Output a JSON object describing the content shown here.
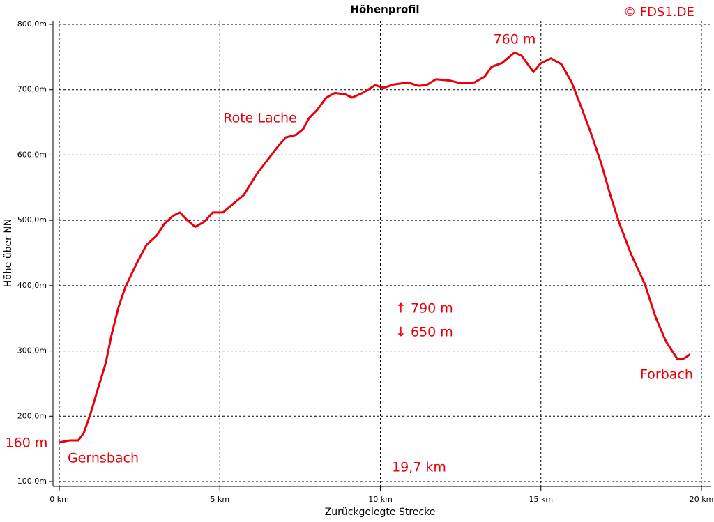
{
  "chart_data": {
    "type": "line",
    "title": "Höhenprofil",
    "x_label": "Zurückgelegte Strecke",
    "y_label": "Höhe über NN",
    "credit": "© FDS1.DE",
    "annotations": [
      "760 m",
      "Rote Lache",
      "160 m",
      "Gernsbach",
      "↑ 790 m",
      "↓ 650 m",
      "19,7 km",
      "Forbach"
    ],
    "xlim": [
      0,
      20
    ],
    "ylim": [
      100,
      800
    ],
    "xticks": [
      {
        "value": 0,
        "label": "0 km"
      },
      {
        "value": 5,
        "label": "5 km"
      },
      {
        "value": 10,
        "label": "10 km"
      },
      {
        "value": 15,
        "label": "15 km"
      },
      {
        "value": 20,
        "label": "20 km"
      }
    ],
    "yticks": [
      {
        "value": 100,
        "label": "100,0m"
      },
      {
        "value": 200,
        "label": "200,0m"
      },
      {
        "value": 300,
        "label": "300,0m"
      },
      {
        "value": 400,
        "label": "400,0m"
      },
      {
        "value": 500,
        "label": "500,0m"
      },
      {
        "value": 600,
        "label": "600,0m"
      },
      {
        "value": 700,
        "label": "700,0m"
      },
      {
        "value": 800,
        "label": "800,0m"
      }
    ],
    "grid": true,
    "series": [
      {
        "color": "#e8000b",
        "x": [
          0,
          0.33,
          0.59,
          0.76,
          0.98,
          1.19,
          1.45,
          1.63,
          1.85,
          2.06,
          2.39,
          2.71,
          3.04,
          3.26,
          3.54,
          3.76,
          3.97,
          4.23,
          4.52,
          4.78,
          5.1,
          5.43,
          5.75,
          6.15,
          6.51,
          6.84,
          7.06,
          7.38,
          7.6,
          7.77,
          8.03,
          8.32,
          8.58,
          8.9,
          9.12,
          9.45,
          9.84,
          10.1,
          10.42,
          10.86,
          11.18,
          11.44,
          11.73,
          12.16,
          12.49,
          12.92,
          13.25,
          13.46,
          13.79,
          14.18,
          14.4,
          14.77,
          14.98,
          15.31,
          15.64,
          15.96,
          16.29,
          16.57,
          16.88,
          17.16,
          17.44,
          17.81,
          18.24,
          18.57,
          18.89,
          19.26,
          19.44,
          19.65
        ],
        "values": [
          160,
          163,
          163,
          174,
          205,
          240,
          282,
          325,
          368,
          398,
          432,
          462,
          477,
          494,
          507,
          512,
          501,
          490,
          498,
          512,
          512,
          526,
          539,
          571,
          594,
          615,
          627,
          631,
          640,
          656,
          669,
          688,
          695,
          693,
          688,
          695,
          707,
          703,
          708,
          711,
          706,
          707,
          716,
          714,
          710,
          711,
          720,
          735,
          741,
          757,
          752,
          727,
          740,
          748,
          739,
          711,
          669,
          632,
          587,
          539,
          496,
          448,
          402,
          352,
          315,
          287,
          288,
          295
        ]
      }
    ]
  }
}
